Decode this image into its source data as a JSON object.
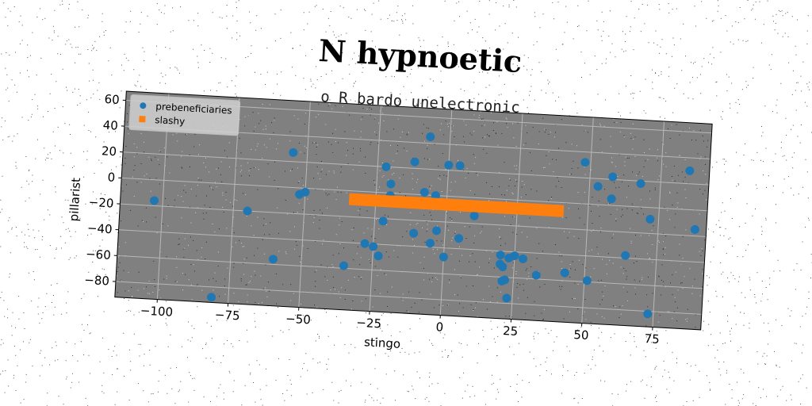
{
  "chart_data": {
    "type": "scatter",
    "title": "N hypnoetic",
    "subtitle": "o R bardo unelectronic",
    "xlabel": "stingo",
    "ylabel": "pillarist",
    "xlim": [
      -115,
      92
    ],
    "ylim": [
      -92,
      67
    ],
    "x_ticks": [
      -100,
      -75,
      -50,
      -25,
      0,
      25,
      50,
      75
    ],
    "y_ticks": [
      -80,
      -60,
      -40,
      -20,
      0,
      20,
      40,
      60
    ],
    "grid": true,
    "legend_position": "top-left",
    "background_color": "#808080",
    "series": [
      {
        "name": "prebeneficiaries",
        "color": "#1f77b4",
        "points": [
          [
            -103,
            -16
          ],
          [
            -81,
            -88
          ],
          [
            -70,
            -20
          ],
          [
            -60,
            -56
          ],
          [
            -55,
            27
          ],
          [
            -52,
            -5
          ],
          [
            -50,
            -3
          ],
          [
            -35,
            -58
          ],
          [
            -28,
            -40
          ],
          [
            -25,
            -42
          ],
          [
            -23,
            -49
          ],
          [
            -22,
            -22
          ],
          [
            -22,
            20
          ],
          [
            -20,
            7
          ],
          [
            -20,
            -2
          ],
          [
            -12,
            25
          ],
          [
            -11,
            -30
          ],
          [
            -8,
            2
          ],
          [
            -7,
            45
          ],
          [
            -5,
            -37
          ],
          [
            -3,
            -27
          ],
          [
            -4,
            0
          ],
          [
            0,
            -47
          ],
          [
            0,
            24
          ],
          [
            4,
            24
          ],
          [
            5,
            -32
          ],
          [
            10,
            -14
          ],
          [
            20,
            -43
          ],
          [
            20,
            -50
          ],
          [
            21,
            -52
          ],
          [
            23,
            -45
          ],
          [
            25,
            -43
          ],
          [
            21,
            -63
          ],
          [
            22,
            -62
          ],
          [
            23,
            -76
          ],
          [
            28,
            -45
          ],
          [
            33,
            -57
          ],
          [
            43,
            -54
          ],
          [
            48,
            32
          ],
          [
            51,
            -59
          ],
          [
            53,
            14
          ],
          [
            58,
            22
          ],
          [
            58,
            5
          ],
          [
            64,
            -38
          ],
          [
            68,
            18
          ],
          [
            72,
            -9
          ],
          [
            73,
            -82
          ],
          [
            85,
            30
          ],
          [
            88,
            -15
          ]
        ]
      },
      {
        "name": "slashy",
        "color": "#ff7f0e",
        "x_range": [
          -33,
          40
        ],
        "y_values": [
          -5,
          -8
        ],
        "count": 60
      }
    ]
  }
}
